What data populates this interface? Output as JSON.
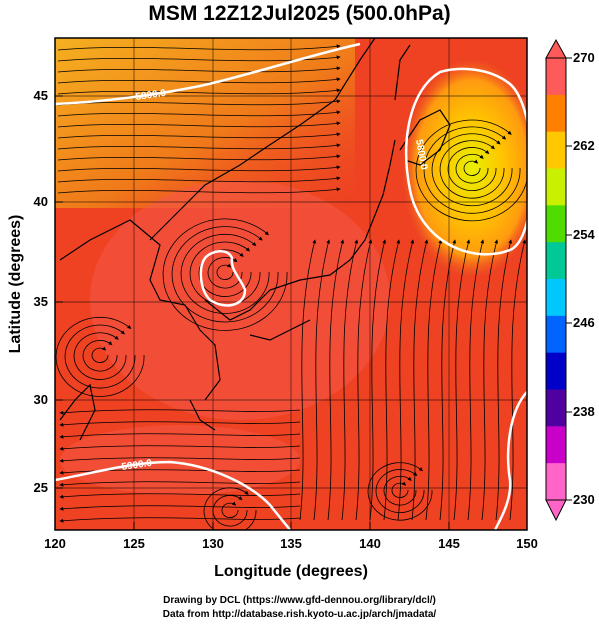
{
  "title": "MSM 12Z12Jul2025 (500.0hPa)",
  "x_axis": {
    "label": "Longitude (degrees)",
    "range": [
      120,
      150
    ],
    "ticks": [
      "120",
      "125",
      "130",
      "135",
      "140",
      "145",
      "150"
    ]
  },
  "y_axis": {
    "label": "Latitude  (degrees)",
    "range": [
      22.5,
      47.5
    ],
    "ticks": [
      "25",
      "30",
      "35",
      "40",
      "45"
    ]
  },
  "colorbar": {
    "range": [
      230,
      270
    ],
    "labels": [
      "270",
      "262",
      "254",
      "246",
      "238",
      "230"
    ],
    "colors": [
      "#ff5a5a",
      "#ff8000",
      "#ffc800",
      "#c8f000",
      "#50dc00",
      "#00c896",
      "#00c8ff",
      "#0064ff",
      "#0000c8",
      "#5000a0",
      "#c800c8",
      "#ff64c8"
    ]
  },
  "contour_labels": [
    "5800.0",
    "5800.0",
    "5800.0",
    "5900.0"
  ],
  "map_colors": {
    "background": "#ee4222",
    "warm_patch": "#f55a48",
    "cool_gradient": "#f28a1c",
    "low_center": "#d8e820",
    "contour": "#ffffff"
  },
  "credits": [
    "Drawing by DCL (https://www.gfd-dennou.org/library/dcl/)",
    "Data from http://database.rish.kyoto-u.ac.jp/arch/jmadata/"
  ]
}
